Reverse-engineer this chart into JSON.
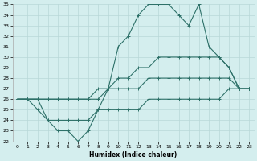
{
  "x": [
    0,
    1,
    2,
    3,
    4,
    5,
    6,
    7,
    8,
    9,
    10,
    11,
    12,
    13,
    14,
    15,
    16,
    17,
    18,
    19,
    20,
    21,
    22,
    23
  ],
  "line_max": [
    26,
    26,
    26,
    24,
    23,
    23,
    22,
    23,
    25,
    27,
    31,
    32,
    34,
    35,
    35,
    35,
    34,
    33,
    35,
    31,
    30,
    29,
    27,
    27
  ],
  "line_avg_high": [
    26,
    26,
    26,
    26,
    26,
    26,
    26,
    26,
    27,
    27,
    28,
    28,
    29,
    29,
    30,
    30,
    30,
    30,
    30,
    30,
    30,
    29,
    27,
    27
  ],
  "line_avg_low": [
    26,
    26,
    26,
    26,
    26,
    26,
    26,
    26,
    26,
    27,
    27,
    27,
    27,
    28,
    28,
    28,
    28,
    28,
    28,
    28,
    28,
    28,
    27,
    27
  ],
  "line_min": [
    26,
    26,
    25,
    24,
    24,
    24,
    24,
    24,
    25,
    25,
    25,
    25,
    25,
    26,
    26,
    26,
    26,
    26,
    26,
    26,
    26,
    27,
    27,
    27
  ],
  "bg_color": "#d4eeee",
  "line_color": "#2d7068",
  "grid_color": "#b8d8d8",
  "xlabel": "Humidex (Indice chaleur)",
  "ylim": [
    22,
    35
  ],
  "xlim": [
    -0.5,
    23.5
  ],
  "yticks": [
    22,
    23,
    24,
    25,
    26,
    27,
    28,
    29,
    30,
    31,
    32,
    33,
    34,
    35
  ],
  "xticks": [
    0,
    1,
    2,
    3,
    4,
    5,
    6,
    7,
    8,
    9,
    10,
    11,
    12,
    13,
    14,
    15,
    16,
    17,
    18,
    19,
    20,
    21,
    22,
    23
  ]
}
